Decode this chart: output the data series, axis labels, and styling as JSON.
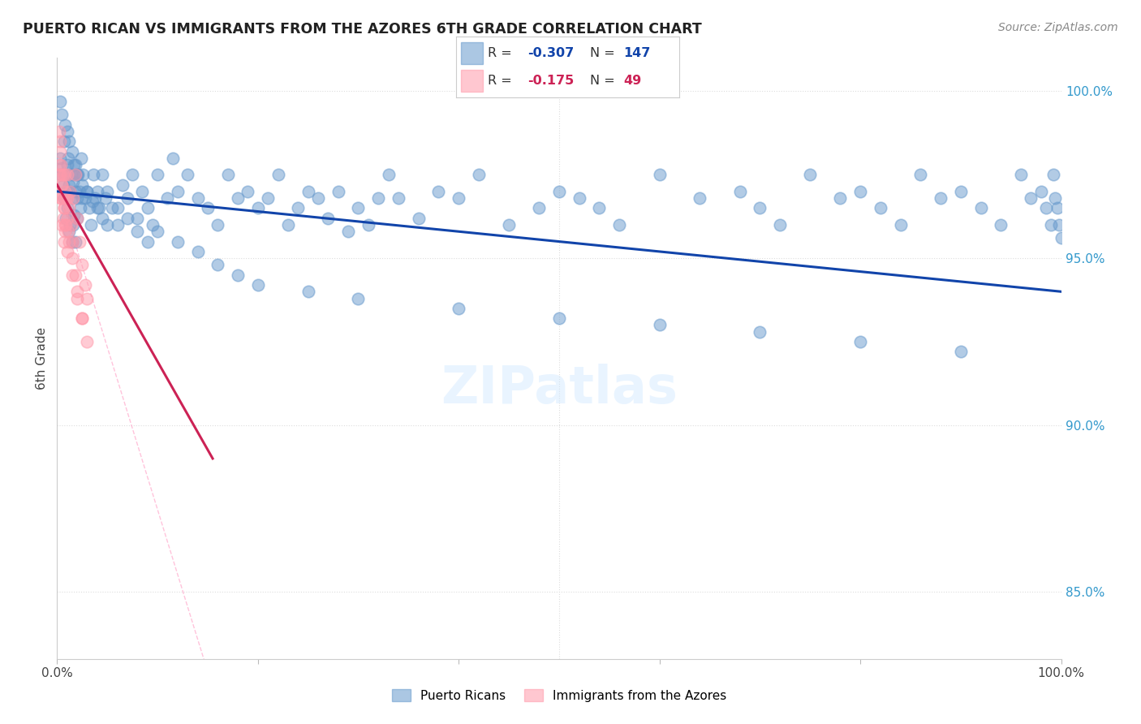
{
  "title": "PUERTO RICAN VS IMMIGRANTS FROM THE AZORES 6TH GRADE CORRELATION CHART",
  "source": "Source: ZipAtlas.com",
  "ylabel": "6th Grade",
  "right_yticks": [
    1.0,
    0.95,
    0.9,
    0.85
  ],
  "right_yticklabels": [
    "100.0%",
    "95.0%",
    "90.0%",
    "85.0%"
  ],
  "legend_blue_label": "Puerto Ricans",
  "legend_pink_label": "Immigrants from the Azores",
  "R_blue": -0.307,
  "N_blue": 147,
  "R_pink": -0.175,
  "N_pink": 49,
  "blue_color": "#6699CC",
  "pink_color": "#FF99AA",
  "blue_line_color": "#1144AA",
  "pink_line_color": "#CC2255",
  "blue_line_x": [
    0.0,
    1.0
  ],
  "blue_line_y": [
    0.97,
    0.94
  ],
  "pink_line_x": [
    0.0,
    0.155
  ],
  "pink_line_y": [
    0.972,
    0.89
  ],
  "ref_line_x": [
    0.0,
    1.0
  ],
  "ref_line_y": [
    0.972,
    0.0
  ],
  "xlim": [
    0.0,
    1.0
  ],
  "ylim": [
    0.83,
    1.01
  ],
  "blue_x": [
    0.003,
    0.004,
    0.005,
    0.006,
    0.007,
    0.007,
    0.008,
    0.009,
    0.009,
    0.01,
    0.01,
    0.011,
    0.012,
    0.012,
    0.013,
    0.013,
    0.014,
    0.015,
    0.015,
    0.016,
    0.016,
    0.017,
    0.017,
    0.018,
    0.018,
    0.019,
    0.02,
    0.02,
    0.021,
    0.022,
    0.023,
    0.024,
    0.025,
    0.026,
    0.028,
    0.03,
    0.032,
    0.034,
    0.036,
    0.038,
    0.04,
    0.042,
    0.045,
    0.048,
    0.05,
    0.055,
    0.06,
    0.065,
    0.07,
    0.075,
    0.08,
    0.085,
    0.09,
    0.095,
    0.1,
    0.11,
    0.115,
    0.12,
    0.13,
    0.14,
    0.15,
    0.16,
    0.17,
    0.18,
    0.19,
    0.2,
    0.21,
    0.22,
    0.23,
    0.24,
    0.25,
    0.26,
    0.27,
    0.28,
    0.29,
    0.3,
    0.31,
    0.32,
    0.33,
    0.34,
    0.36,
    0.38,
    0.4,
    0.42,
    0.45,
    0.48,
    0.5,
    0.52,
    0.54,
    0.56,
    0.6,
    0.64,
    0.68,
    0.7,
    0.72,
    0.75,
    0.78,
    0.8,
    0.82,
    0.84,
    0.86,
    0.88,
    0.9,
    0.92,
    0.94,
    0.96,
    0.97,
    0.98,
    0.985,
    0.99,
    0.992,
    0.994,
    0.996,
    0.998,
    1.0,
    0.003,
    0.005,
    0.008,
    0.01,
    0.012,
    0.015,
    0.018,
    0.02,
    0.025,
    0.03,
    0.035,
    0.04,
    0.045,
    0.05,
    0.06,
    0.07,
    0.08,
    0.09,
    0.1,
    0.12,
    0.14,
    0.16,
    0.18,
    0.2,
    0.25,
    0.3,
    0.4,
    0.5,
    0.6,
    0.7,
    0.8,
    0.9
  ],
  "blue_y": [
    0.98,
    0.975,
    0.977,
    0.972,
    0.985,
    0.968,
    0.975,
    0.97,
    0.962,
    0.978,
    0.965,
    0.98,
    0.972,
    0.958,
    0.97,
    0.96,
    0.975,
    0.968,
    0.955,
    0.973,
    0.96,
    0.978,
    0.963,
    0.97,
    0.955,
    0.975,
    0.968,
    0.962,
    0.975,
    0.97,
    0.965,
    0.98,
    0.968,
    0.975,
    0.968,
    0.97,
    0.965,
    0.96,
    0.975,
    0.968,
    0.97,
    0.965,
    0.975,
    0.968,
    0.97,
    0.965,
    0.96,
    0.972,
    0.968,
    0.975,
    0.962,
    0.97,
    0.965,
    0.96,
    0.975,
    0.968,
    0.98,
    0.97,
    0.975,
    0.968,
    0.965,
    0.96,
    0.975,
    0.968,
    0.97,
    0.965,
    0.968,
    0.975,
    0.96,
    0.965,
    0.97,
    0.968,
    0.962,
    0.97,
    0.958,
    0.965,
    0.96,
    0.968,
    0.975,
    0.968,
    0.962,
    0.97,
    0.968,
    0.975,
    0.96,
    0.965,
    0.97,
    0.968,
    0.965,
    0.96,
    0.975,
    0.968,
    0.97,
    0.965,
    0.96,
    0.975,
    0.968,
    0.97,
    0.965,
    0.96,
    0.975,
    0.968,
    0.97,
    0.965,
    0.96,
    0.975,
    0.968,
    0.97,
    0.965,
    0.96,
    0.975,
    0.968,
    0.965,
    0.96,
    0.956,
    0.997,
    0.993,
    0.99,
    0.988,
    0.985,
    0.982,
    0.978,
    0.975,
    0.972,
    0.97,
    0.967,
    0.965,
    0.962,
    0.96,
    0.965,
    0.962,
    0.958,
    0.955,
    0.958,
    0.955,
    0.952,
    0.948,
    0.945,
    0.942,
    0.94,
    0.938,
    0.935,
    0.932,
    0.93,
    0.928,
    0.925,
    0.922
  ],
  "pink_x": [
    0.002,
    0.003,
    0.004,
    0.004,
    0.005,
    0.005,
    0.006,
    0.007,
    0.007,
    0.008,
    0.008,
    0.009,
    0.01,
    0.01,
    0.011,
    0.012,
    0.013,
    0.014,
    0.015,
    0.016,
    0.018,
    0.02,
    0.022,
    0.025,
    0.028,
    0.03,
    0.002,
    0.003,
    0.004,
    0.005,
    0.006,
    0.007,
    0.008,
    0.009,
    0.01,
    0.012,
    0.015,
    0.018,
    0.02,
    0.025,
    0.002,
    0.004,
    0.006,
    0.008,
    0.01,
    0.015,
    0.02,
    0.025,
    0.03
  ],
  "pink_y": [
    0.978,
    0.985,
    0.975,
    0.968,
    0.972,
    0.96,
    0.975,
    0.965,
    0.955,
    0.97,
    0.96,
    0.968,
    0.975,
    0.962,
    0.958,
    0.965,
    0.97,
    0.96,
    0.955,
    0.968,
    0.975,
    0.962,
    0.955,
    0.948,
    0.942,
    0.938,
    0.988,
    0.982,
    0.978,
    0.972,
    0.968,
    0.965,
    0.975,
    0.96,
    0.968,
    0.955,
    0.95,
    0.945,
    0.94,
    0.932,
    0.975,
    0.968,
    0.962,
    0.958,
    0.952,
    0.945,
    0.938,
    0.932,
    0.925
  ]
}
